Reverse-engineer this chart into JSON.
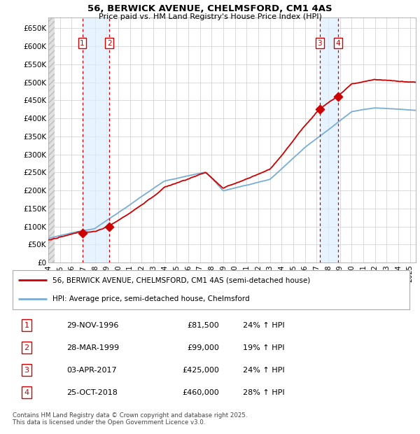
{
  "title1": "56, BERWICK AVENUE, CHELMSFORD, CM1 4AS",
  "title2": "Price paid vs. HM Land Registry's House Price Index (HPI)",
  "ylabel_vals": [
    0,
    50000,
    100000,
    150000,
    200000,
    250000,
    300000,
    350000,
    400000,
    450000,
    500000,
    550000,
    600000,
    650000
  ],
  "ylabel_strs": [
    "£0",
    "£50K",
    "£100K",
    "£150K",
    "£200K",
    "£250K",
    "£300K",
    "£350K",
    "£400K",
    "£450K",
    "£500K",
    "£550K",
    "£600K",
    "£650K"
  ],
  "xmin": 1994.0,
  "xmax": 2025.5,
  "ymin": 0,
  "ymax": 680000,
  "sale_dates": [
    1996.91,
    1999.24,
    2017.26,
    2018.82
  ],
  "sale_prices": [
    81500,
    99000,
    425000,
    460000
  ],
  "sale_labels": [
    "1",
    "2",
    "3",
    "4"
  ],
  "legend_line1": "56, BERWICK AVENUE, CHELMSFORD, CM1 4AS (semi-detached house)",
  "legend_line2": "HPI: Average price, semi-detached house, Chelmsford",
  "table_rows": [
    [
      "1",
      "29-NOV-1996",
      "£81,500",
      "24% ↑ HPI"
    ],
    [
      "2",
      "28-MAR-1999",
      "£99,000",
      "19% ↑ HPI"
    ],
    [
      "3",
      "03-APR-2017",
      "£425,000",
      "24% ↑ HPI"
    ],
    [
      "4",
      "25-OCT-2018",
      "£460,000",
      "28% ↑ HPI"
    ]
  ],
  "footnote": "Contains HM Land Registry data © Crown copyright and database right 2025.\nThis data is licensed under the Open Government Licence v3.0.",
  "red_color": "#cc0000",
  "blue_color": "#7aadd4",
  "grid_color": "#cccccc",
  "shade_color": "#ddeeff",
  "hatch_color": "#e0e0e0"
}
